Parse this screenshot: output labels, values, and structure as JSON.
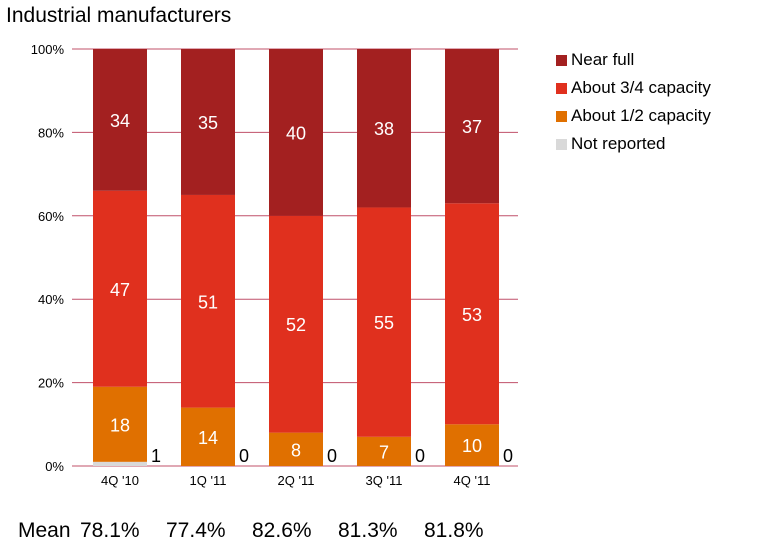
{
  "chart_data": {
    "type": "bar",
    "stacked": true,
    "title": "Industrial manufacturers",
    "categories": [
      "4Q '10",
      "1Q '11",
      "2Q '11",
      "3Q '11",
      "4Q '11"
    ],
    "ylim": [
      0,
      100
    ],
    "yticks": [
      "0%",
      "20%",
      "40%",
      "60%",
      "80%",
      "100%"
    ],
    "grid": true,
    "legend_position": "right",
    "series": [
      {
        "name": "Not reported",
        "color": "#d9d9d9",
        "values": [
          1,
          0,
          0,
          0,
          0
        ]
      },
      {
        "name": "About 1/2 capacity",
        "color": "#e07000",
        "values": [
          18,
          14,
          8,
          7,
          10
        ]
      },
      {
        "name": "About 3/4 capacity",
        "color": "#e0301e",
        "values": [
          47,
          51,
          52,
          55,
          53
        ]
      },
      {
        "name": "Near full",
        "color": "#a32020",
        "values": [
          34,
          35,
          40,
          38,
          37
        ]
      }
    ],
    "not_reported_labels": [
      "1",
      "0",
      "0",
      "0",
      "0"
    ],
    "mean_label": "Mean",
    "means": [
      "78.1%",
      "77.4%",
      "82.6%",
      "81.3%",
      "81.8%"
    ]
  },
  "colors": {
    "gridline": "#c0506a",
    "bar_label_light": "#ffffff"
  }
}
